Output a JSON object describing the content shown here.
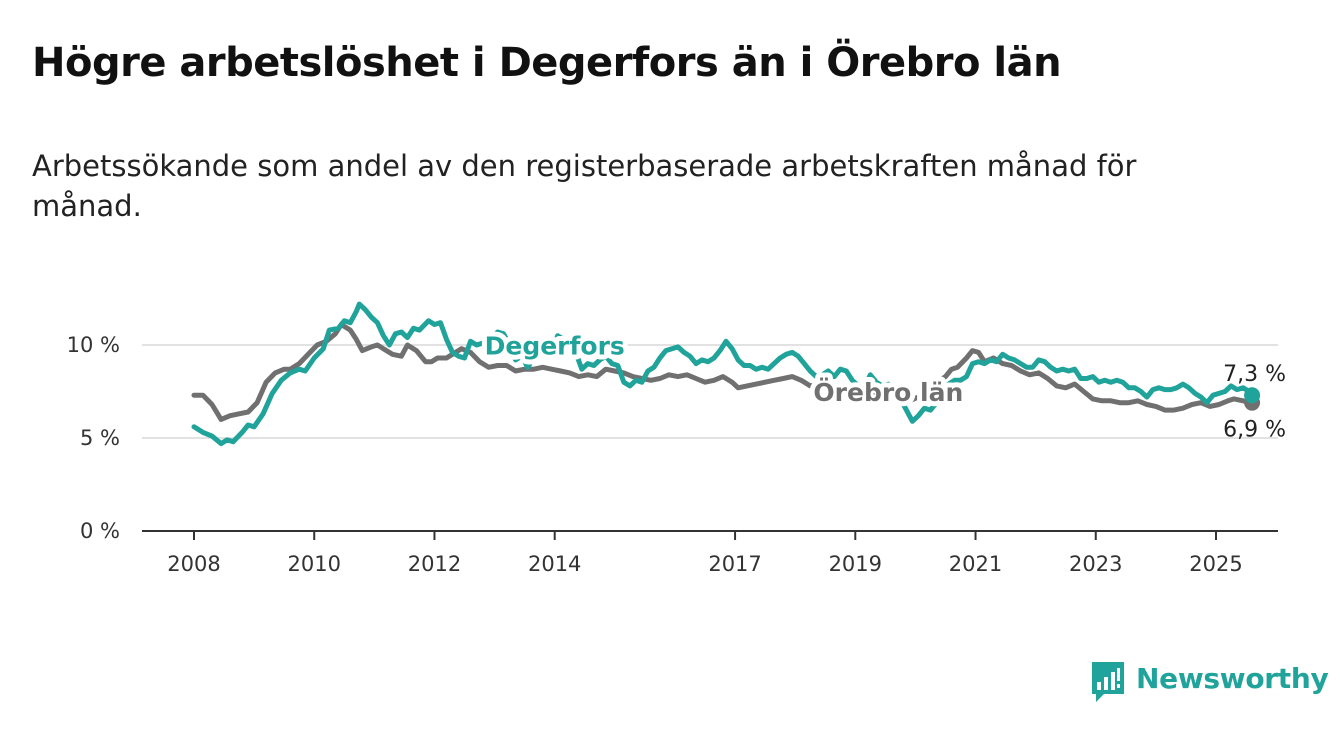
{
  "title": "Högre arbetslöshet i Degerfors än i Örebro län",
  "subtitle": "Arbetssökande som andel av den registerbaserade arbetskraften månad för månad.",
  "brand": {
    "name": "Newsworthy",
    "icon": "newsworthy-bar-chart-icon",
    "color": "#1fa39a"
  },
  "chart_data": {
    "type": "line",
    "title": "Högre arbetslöshet i Degerfors än i Örebro län",
    "subtitle": "Arbetssökande som andel av den registerbaserade arbetskraften månad för månad.",
    "xlabel": "",
    "ylabel": "",
    "x_ticks": [
      "2008",
      "2010",
      "2012",
      "2014",
      "2017",
      "2019",
      "2021",
      "2023",
      "2025"
    ],
    "y_ticks": [
      "0 %",
      "5 %",
      "10 %"
    ],
    "ylim": [
      0,
      13
    ],
    "xlim": [
      2007.2,
      2026.1
    ],
    "grid": true,
    "series": [
      {
        "name": "Degerfors",
        "color": "#1fa39a",
        "end_label": "7,3 %",
        "points": [
          [
            2008.0,
            5.6
          ],
          [
            2008.15,
            5.3
          ],
          [
            2008.3,
            5.1
          ],
          [
            2008.45,
            4.7
          ],
          [
            2008.55,
            4.9
          ],
          [
            2008.65,
            4.8
          ],
          [
            2008.8,
            5.3
          ],
          [
            2008.9,
            5.7
          ],
          [
            2009.0,
            5.6
          ],
          [
            2009.15,
            6.3
          ],
          [
            2009.3,
            7.4
          ],
          [
            2009.45,
            8.1
          ],
          [
            2009.6,
            8.5
          ],
          [
            2009.75,
            8.7
          ],
          [
            2009.85,
            8.6
          ],
          [
            2010.0,
            9.3
          ],
          [
            2010.15,
            9.8
          ],
          [
            2010.25,
            10.8
          ],
          [
            2010.4,
            10.9
          ],
          [
            2010.5,
            11.3
          ],
          [
            2010.6,
            11.2
          ],
          [
            2010.7,
            11.8
          ],
          [
            2010.75,
            12.2
          ],
          [
            2010.85,
            11.9
          ],
          [
            2010.95,
            11.5
          ],
          [
            2011.05,
            11.2
          ],
          [
            2011.15,
            10.5
          ],
          [
            2011.25,
            10.0
          ],
          [
            2011.35,
            10.6
          ],
          [
            2011.45,
            10.7
          ],
          [
            2011.55,
            10.4
          ],
          [
            2011.65,
            10.9
          ],
          [
            2011.75,
            10.8
          ],
          [
            2011.9,
            11.3
          ],
          [
            2012.0,
            11.1
          ],
          [
            2012.1,
            11.2
          ],
          [
            2012.2,
            10.3
          ],
          [
            2012.3,
            9.6
          ],
          [
            2012.4,
            9.4
          ],
          [
            2012.5,
            9.3
          ],
          [
            2012.6,
            10.2
          ],
          [
            2012.7,
            10.0
          ],
          [
            2012.8,
            10.1
          ],
          [
            2012.95,
            10.3
          ],
          [
            2013.05,
            10.7
          ],
          [
            2013.15,
            10.6
          ],
          [
            2013.25,
            10.0
          ],
          [
            2013.35,
            9.2
          ],
          [
            2013.45,
            9.4
          ],
          [
            2013.55,
            8.8
          ],
          [
            2013.65,
            9.3
          ],
          [
            2013.75,
            9.6
          ],
          [
            2013.85,
            9.4
          ],
          [
            2013.95,
            9.7
          ],
          [
            2014.05,
            10.5
          ],
          [
            2014.15,
            10.3
          ],
          [
            2014.25,
            9.9
          ],
          [
            2014.35,
            9.6
          ],
          [
            2014.45,
            8.7
          ],
          [
            2014.55,
            9.0
          ],
          [
            2014.65,
            8.9
          ],
          [
            2014.75,
            9.2
          ],
          [
            2014.85,
            9.4
          ],
          [
            2014.95,
            9.0
          ],
          [
            2015.05,
            8.9
          ],
          [
            2015.15,
            8.0
          ],
          [
            2015.25,
            7.8
          ],
          [
            2015.35,
            8.1
          ],
          [
            2015.45,
            8.0
          ],
          [
            2015.55,
            8.6
          ],
          [
            2015.65,
            8.8
          ],
          [
            2015.75,
            9.3
          ],
          [
            2015.85,
            9.7
          ],
          [
            2015.95,
            9.8
          ],
          [
            2016.05,
            9.9
          ],
          [
            2016.15,
            9.6
          ],
          [
            2016.25,
            9.4
          ],
          [
            2016.35,
            9.0
          ],
          [
            2016.45,
            9.2
          ],
          [
            2016.55,
            9.1
          ],
          [
            2016.65,
            9.3
          ],
          [
            2016.75,
            9.7
          ],
          [
            2016.85,
            10.2
          ],
          [
            2016.95,
            9.8
          ],
          [
            2017.05,
            9.2
          ],
          [
            2017.15,
            8.9
          ],
          [
            2017.25,
            8.9
          ],
          [
            2017.35,
            8.7
          ],
          [
            2017.45,
            8.8
          ],
          [
            2017.55,
            8.7
          ],
          [
            2017.65,
            9.0
          ],
          [
            2017.75,
            9.3
          ],
          [
            2017.85,
            9.5
          ],
          [
            2017.95,
            9.6
          ],
          [
            2018.05,
            9.4
          ],
          [
            2018.15,
            9.0
          ],
          [
            2018.25,
            8.6
          ],
          [
            2018.35,
            8.3
          ],
          [
            2018.45,
            8.4
          ],
          [
            2018.55,
            8.6
          ],
          [
            2018.65,
            8.3
          ],
          [
            2018.75,
            8.7
          ],
          [
            2018.85,
            8.6
          ],
          [
            2018.95,
            8.1
          ],
          [
            2019.05,
            7.8
          ],
          [
            2019.15,
            7.7
          ],
          [
            2019.25,
            8.4
          ],
          [
            2019.35,
            8.0
          ],
          [
            2019.45,
            7.8
          ],
          [
            2019.55,
            7.9
          ],
          [
            2019.65,
            7.7
          ],
          [
            2019.75,
            7.1
          ],
          [
            2019.85,
            6.5
          ],
          [
            2019.95,
            5.9
          ],
          [
            2020.05,
            6.2
          ],
          [
            2020.15,
            6.6
          ],
          [
            2020.25,
            6.5
          ],
          [
            2020.35,
            6.9
          ],
          [
            2020.45,
            7.6
          ],
          [
            2020.55,
            7.9
          ],
          [
            2020.65,
            8.1
          ],
          [
            2020.75,
            8.1
          ],
          [
            2020.85,
            8.3
          ],
          [
            2020.95,
            9.0
          ],
          [
            2021.05,
            9.1
          ],
          [
            2021.15,
            9.0
          ],
          [
            2021.25,
            9.2
          ],
          [
            2021.35,
            9.1
          ],
          [
            2021.45,
            9.5
          ],
          [
            2021.55,
            9.3
          ],
          [
            2021.65,
            9.2
          ],
          [
            2021.75,
            9.0
          ],
          [
            2021.85,
            8.8
          ],
          [
            2021.95,
            8.8
          ],
          [
            2022.05,
            9.2
          ],
          [
            2022.15,
            9.1
          ],
          [
            2022.25,
            8.8
          ],
          [
            2022.35,
            8.6
          ],
          [
            2022.45,
            8.7
          ],
          [
            2022.55,
            8.6
          ],
          [
            2022.65,
            8.7
          ],
          [
            2022.75,
            8.2
          ],
          [
            2022.85,
            8.2
          ],
          [
            2022.95,
            8.3
          ],
          [
            2023.05,
            8.0
          ],
          [
            2023.15,
            8.1
          ],
          [
            2023.25,
            8.0
          ],
          [
            2023.35,
            8.1
          ],
          [
            2023.45,
            8.0
          ],
          [
            2023.55,
            7.7
          ],
          [
            2023.65,
            7.7
          ],
          [
            2023.75,
            7.5
          ],
          [
            2023.85,
            7.2
          ],
          [
            2023.95,
            7.6
          ],
          [
            2024.05,
            7.7
          ],
          [
            2024.15,
            7.6
          ],
          [
            2024.25,
            7.6
          ],
          [
            2024.35,
            7.7
          ],
          [
            2024.45,
            7.9
          ],
          [
            2024.55,
            7.7
          ],
          [
            2024.65,
            7.4
          ],
          [
            2024.75,
            7.2
          ],
          [
            2024.85,
            6.9
          ],
          [
            2024.95,
            7.3
          ],
          [
            2025.05,
            7.4
          ],
          [
            2025.15,
            7.5
          ],
          [
            2025.25,
            7.8
          ],
          [
            2025.35,
            7.6
          ],
          [
            2025.45,
            7.7
          ],
          [
            2025.55,
            7.5
          ],
          [
            2025.6,
            7.3
          ]
        ]
      },
      {
        "name": "Örebro län",
        "color": "#707070",
        "end_label": "6,9 %",
        "points": [
          [
            2008.0,
            7.3
          ],
          [
            2008.15,
            7.3
          ],
          [
            2008.3,
            6.8
          ],
          [
            2008.45,
            6.0
          ],
          [
            2008.6,
            6.2
          ],
          [
            2008.75,
            6.3
          ],
          [
            2008.9,
            6.4
          ],
          [
            2009.05,
            6.9
          ],
          [
            2009.2,
            8.0
          ],
          [
            2009.35,
            8.5
          ],
          [
            2009.5,
            8.7
          ],
          [
            2009.6,
            8.7
          ],
          [
            2009.75,
            9.0
          ],
          [
            2009.9,
            9.5
          ],
          [
            2010.05,
            10.0
          ],
          [
            2010.2,
            10.2
          ],
          [
            2010.35,
            10.6
          ],
          [
            2010.45,
            11.1
          ],
          [
            2010.6,
            10.8
          ],
          [
            2010.7,
            10.3
          ],
          [
            2010.8,
            9.7
          ],
          [
            2010.95,
            9.9
          ],
          [
            2011.05,
            10.0
          ],
          [
            2011.15,
            9.8
          ],
          [
            2011.3,
            9.5
          ],
          [
            2011.45,
            9.4
          ],
          [
            2011.55,
            10.0
          ],
          [
            2011.7,
            9.7
          ],
          [
            2011.85,
            9.1
          ],
          [
            2011.95,
            9.1
          ],
          [
            2012.05,
            9.3
          ],
          [
            2012.2,
            9.3
          ],
          [
            2012.35,
            9.6
          ],
          [
            2012.45,
            9.8
          ],
          [
            2012.6,
            9.6
          ],
          [
            2012.75,
            9.1
          ],
          [
            2012.9,
            8.8
          ],
          [
            2013.05,
            8.9
          ],
          [
            2013.2,
            8.9
          ],
          [
            2013.35,
            8.6
          ],
          [
            2013.5,
            8.7
          ],
          [
            2013.65,
            8.7
          ],
          [
            2013.8,
            8.8
          ],
          [
            2013.95,
            8.7
          ],
          [
            2014.1,
            8.6
          ],
          [
            2014.25,
            8.5
          ],
          [
            2014.4,
            8.3
          ],
          [
            2014.55,
            8.4
          ],
          [
            2014.7,
            8.3
          ],
          [
            2014.85,
            8.7
          ],
          [
            2015.0,
            8.6
          ],
          [
            2015.15,
            8.5
          ],
          [
            2015.3,
            8.3
          ],
          [
            2015.45,
            8.2
          ],
          [
            2015.6,
            8.1
          ],
          [
            2015.75,
            8.2
          ],
          [
            2015.9,
            8.4
          ],
          [
            2016.05,
            8.3
          ],
          [
            2016.2,
            8.4
          ],
          [
            2016.35,
            8.2
          ],
          [
            2016.5,
            8.0
          ],
          [
            2016.65,
            8.1
          ],
          [
            2016.8,
            8.3
          ],
          [
            2016.95,
            8.0
          ],
          [
            2017.05,
            7.7
          ],
          [
            2017.2,
            7.8
          ],
          [
            2017.35,
            7.9
          ],
          [
            2017.5,
            8.0
          ],
          [
            2017.65,
            8.1
          ],
          [
            2017.8,
            8.2
          ],
          [
            2017.95,
            8.3
          ],
          [
            2018.1,
            8.1
          ],
          [
            2018.25,
            7.8
          ],
          [
            2018.4,
            7.9
          ],
          [
            2018.55,
            7.7
          ],
          [
            2018.7,
            7.7
          ],
          [
            2018.85,
            7.8
          ],
          [
            2019.0,
            7.6
          ],
          [
            2019.15,
            7.6
          ],
          [
            2019.3,
            7.5
          ],
          [
            2019.45,
            7.4
          ],
          [
            2019.6,
            7.3
          ],
          [
            2019.75,
            7.1
          ],
          [
            2019.9,
            7.0
          ],
          [
            2020.05,
            7.2
          ],
          [
            2020.2,
            7.5
          ],
          [
            2020.35,
            8.0
          ],
          [
            2020.5,
            8.3
          ],
          [
            2020.6,
            8.7
          ],
          [
            2020.7,
            8.8
          ],
          [
            2020.85,
            9.3
          ],
          [
            2020.95,
            9.7
          ],
          [
            2021.05,
            9.6
          ],
          [
            2021.15,
            9.1
          ],
          [
            2021.3,
            9.3
          ],
          [
            2021.45,
            9.0
          ],
          [
            2021.6,
            8.9
          ],
          [
            2021.75,
            8.6
          ],
          [
            2021.9,
            8.4
          ],
          [
            2022.05,
            8.5
          ],
          [
            2022.2,
            8.2
          ],
          [
            2022.35,
            7.8
          ],
          [
            2022.5,
            7.7
          ],
          [
            2022.65,
            7.9
          ],
          [
            2022.8,
            7.5
          ],
          [
            2022.95,
            7.1
          ],
          [
            2023.1,
            7.0
          ],
          [
            2023.25,
            7.0
          ],
          [
            2023.4,
            6.9
          ],
          [
            2023.55,
            6.9
          ],
          [
            2023.7,
            7.0
          ],
          [
            2023.85,
            6.8
          ],
          [
            2024.0,
            6.7
          ],
          [
            2024.15,
            6.5
          ],
          [
            2024.3,
            6.5
          ],
          [
            2024.45,
            6.6
          ],
          [
            2024.6,
            6.8
          ],
          [
            2024.75,
            6.9
          ],
          [
            2024.9,
            6.7
          ],
          [
            2025.05,
            6.8
          ],
          [
            2025.2,
            7.0
          ],
          [
            2025.3,
            7.1
          ],
          [
            2025.45,
            7.0
          ],
          [
            2025.55,
            6.9
          ],
          [
            2025.6,
            6.9
          ]
        ]
      }
    ]
  }
}
